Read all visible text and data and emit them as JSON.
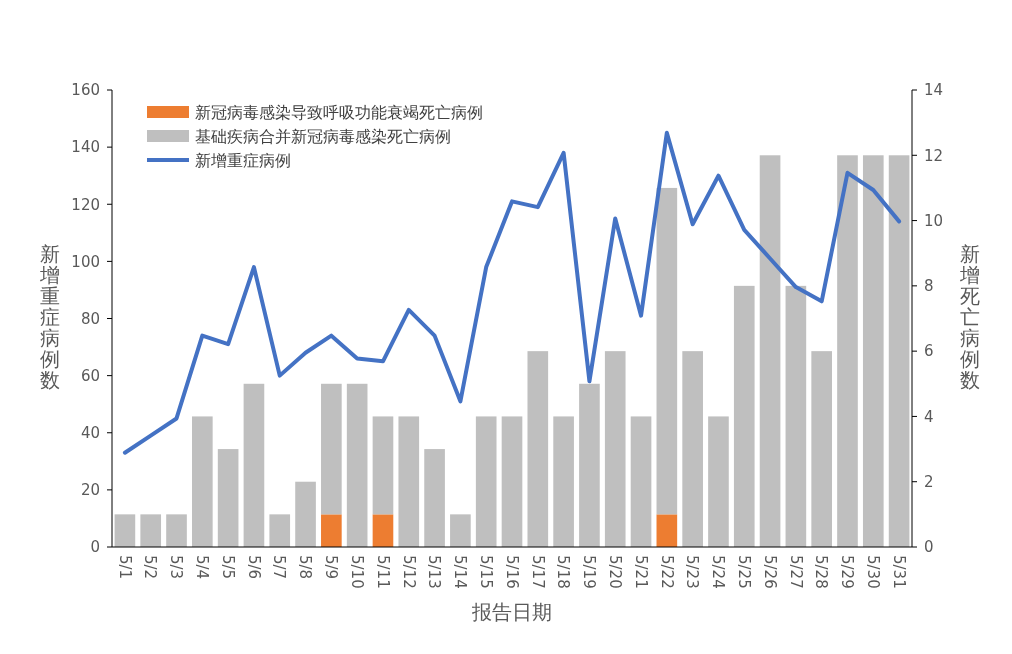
{
  "chart_data": {
    "type": "bar",
    "stacked": true,
    "xlabel": "报告日期",
    "ylabel": "新增重症病例数",
    "y2label": "新增死亡病例数",
    "categories": [
      "5/1",
      "5/2",
      "5/3",
      "5/4",
      "5/5",
      "5/6",
      "5/7",
      "5/8",
      "5/9",
      "5/10",
      "5/11",
      "5/12",
      "5/13",
      "5/14",
      "5/15",
      "5/16",
      "5/17",
      "5/18",
      "5/19",
      "5/20",
      "5/21",
      "5/22",
      "5/23",
      "5/24",
      "5/25",
      "5/26",
      "5/27",
      "5/28",
      "5/29",
      "5/30",
      "5/31"
    ],
    "series": [
      {
        "name": "新冠病毒感染导致呼吸功能衰竭死亡病例",
        "axis": "y2",
        "color": "#ed7d31",
        "values": [
          0,
          0,
          0,
          0,
          0,
          0,
          0,
          0,
          1,
          0,
          1,
          0,
          0,
          0,
          0,
          0,
          0,
          0,
          0,
          0,
          0,
          1,
          0,
          0,
          0,
          0,
          0,
          0,
          0,
          0,
          0
        ]
      },
      {
        "name": "基础疾病合并新冠病毒感染死亡病例",
        "axis": "y2",
        "color": "#bfbfbf",
        "values": [
          1,
          1,
          1,
          4,
          3,
          5,
          1,
          2,
          4,
          5,
          3,
          4,
          3,
          1,
          4,
          4,
          6,
          4,
          5,
          6,
          4,
          10,
          6,
          4,
          8,
          12,
          8,
          6,
          12,
          12,
          12
        ]
      },
      {
        "name": "新增重症病例",
        "type": "line",
        "axis": "y",
        "color": "#4472c4",
        "values": [
          33,
          39,
          45,
          74,
          71,
          98,
          60,
          68,
          74,
          66,
          65,
          83,
          74,
          51,
          98,
          121,
          119,
          138,
          58,
          115,
          81,
          145,
          113,
          130,
          111,
          101,
          91,
          86,
          131,
          125,
          114
        ]
      }
    ],
    "ylim": [
      0,
      160
    ],
    "yticks": [
      0,
      20,
      40,
      60,
      80,
      100,
      120,
      140,
      160
    ],
    "y2lim": [
      0,
      14
    ],
    "y2ticks": [
      0,
      2,
      4,
      6,
      8,
      10,
      12,
      14
    ],
    "legend": "top left",
    "grid": false,
    "marker": "none",
    "line_style": "solid"
  }
}
